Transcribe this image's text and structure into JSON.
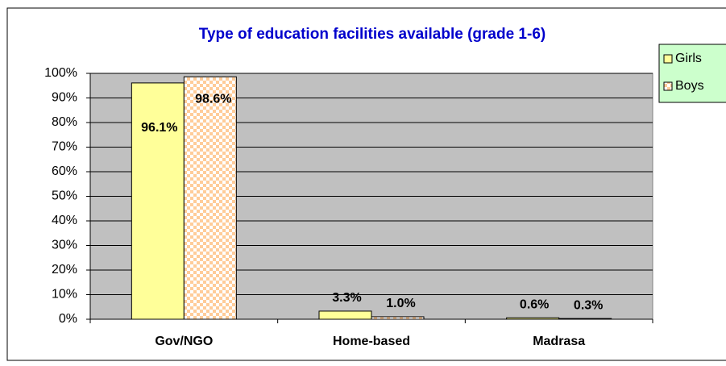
{
  "chart_data": {
    "type": "bar",
    "title": "Type of education facilities available (grade 1-6)",
    "categories": [
      "Gov/NGO",
      "Home-based",
      "Madrasa"
    ],
    "series": [
      {
        "name": "Girls",
        "color": "#ffff99",
        "values": [
          96.1,
          3.3,
          0.6
        ],
        "value_labels": [
          "96.1%",
          "3.3%",
          "0.6%"
        ]
      },
      {
        "name": "Boys",
        "color": "#ffcc99",
        "values": [
          98.6,
          1.0,
          0.3
        ],
        "value_labels": [
          "98.6%",
          "1.0%",
          "0.3%"
        ]
      }
    ],
    "ylim": [
      0,
      100
    ],
    "yticks": [
      {
        "value": 0,
        "label": "0%"
      },
      {
        "value": 10,
        "label": "10%"
      },
      {
        "value": 20,
        "label": "20%"
      },
      {
        "value": 30,
        "label": "30%"
      },
      {
        "value": 40,
        "label": "40%"
      },
      {
        "value": 50,
        "label": "50%"
      },
      {
        "value": 60,
        "label": "60%"
      },
      {
        "value": 70,
        "label": "70%"
      },
      {
        "value": 80,
        "label": "80%"
      },
      {
        "value": 90,
        "label": "90%"
      },
      {
        "value": 100,
        "label": "100%"
      }
    ],
    "grid": true,
    "legend": "right"
  }
}
